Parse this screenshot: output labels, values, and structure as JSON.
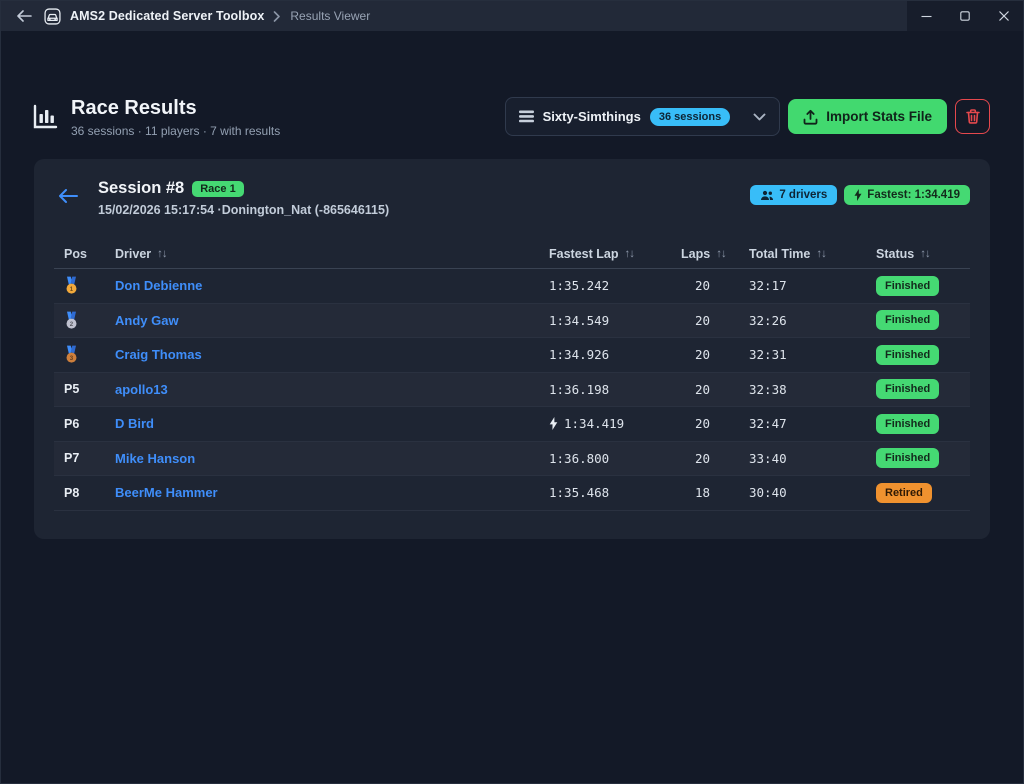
{
  "titlebar": {
    "app_title": "AMS2 Dedicated Server Toolbox",
    "breadcrumb": "Results Viewer"
  },
  "header": {
    "title": "Race Results",
    "subtitle": "36 sessions · 11 players · 7 with results"
  },
  "toolbar": {
    "server_select_label": "Sixty-Simthings",
    "server_select_badge": "36 sessions",
    "import_label": "Import Stats File"
  },
  "session": {
    "title": "Session #8",
    "type_badge": "Race 1",
    "meta": "15/02/2026 15:17:54 ·Donington_Nat (-865646115)",
    "drivers_badge": "7 drivers",
    "fastest_badge": "Fastest: 1:34.419"
  },
  "icons": {
    "sort_glyph": "↑↓"
  },
  "table": {
    "columns": [
      {
        "label": "Pos",
        "sortable": false
      },
      {
        "label": "Driver",
        "sortable": true
      },
      {
        "label": "Fastest Lap",
        "sortable": true
      },
      {
        "label": "Laps",
        "sortable": true
      },
      {
        "label": "Total Time",
        "sortable": true
      },
      {
        "label": "Status",
        "sortable": true
      }
    ],
    "rows": [
      {
        "pos": "1",
        "medal": "gold",
        "driver": "Don Debienne",
        "fastest_lap": "1:35.242",
        "overall_fastest": false,
        "laps": "20",
        "total_time": "32:17",
        "status": "Finished"
      },
      {
        "pos": "2",
        "medal": "silver",
        "driver": "Andy Gaw",
        "fastest_lap": "1:34.549",
        "overall_fastest": false,
        "laps": "20",
        "total_time": "32:26",
        "status": "Finished"
      },
      {
        "pos": "3",
        "medal": "bronze",
        "driver": "Craig Thomas",
        "fastest_lap": "1:34.926",
        "overall_fastest": false,
        "laps": "20",
        "total_time": "32:31",
        "status": "Finished"
      },
      {
        "pos": "P5",
        "medal": null,
        "driver": "apollo13",
        "fastest_lap": "1:36.198",
        "overall_fastest": false,
        "laps": "20",
        "total_time": "32:38",
        "status": "Finished"
      },
      {
        "pos": "P6",
        "medal": null,
        "driver": "D Bird",
        "fastest_lap": "1:34.419",
        "overall_fastest": true,
        "laps": "20",
        "total_time": "32:47",
        "status": "Finished"
      },
      {
        "pos": "P7",
        "medal": null,
        "driver": "Mike Hanson",
        "fastest_lap": "1:36.800",
        "overall_fastest": false,
        "laps": "20",
        "total_time": "33:40",
        "status": "Finished"
      },
      {
        "pos": "P8",
        "medal": null,
        "driver": "BeerMe Hammer",
        "fastest_lap": "1:35.468",
        "overall_fastest": false,
        "laps": "18",
        "total_time": "30:40",
        "status": "Retired"
      }
    ]
  },
  "colors": {
    "accent_green": "#45d973",
    "accent_blue": "#38bdf8",
    "danger_red": "#e5484d",
    "driver_link": "#3f8efa",
    "status": {
      "Finished": "#45d973",
      "Retired": "#f0922f"
    },
    "medals": {
      "gold": "#f2a93b",
      "silver": "#bfc1cf",
      "bronze": "#cd7f3c",
      "ribbon": "#3f8efa"
    }
  }
}
